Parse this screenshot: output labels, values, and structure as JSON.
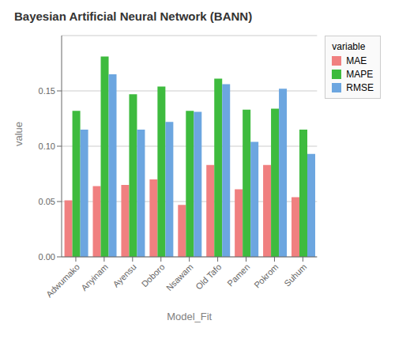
{
  "chart_data": {
    "type": "bar",
    "title": "Bayesian Artificial Neural Network (BANN)",
    "xlabel": "Model_Fit",
    "ylabel": "value",
    "categories": [
      "Adwumako",
      "Anyinam",
      "Ayensu",
      "Doboro",
      "Nsawam",
      "Old Tafo",
      "Pamen",
      "Pokrom",
      "Suhum"
    ],
    "series": [
      {
        "name": "MAE",
        "color": "#F08080",
        "values": [
          0.051,
          0.064,
          0.065,
          0.07,
          0.047,
          0.083,
          0.061,
          0.083,
          0.054
        ]
      },
      {
        "name": "MAPE",
        "color": "#3EBB3E",
        "values": [
          0.132,
          0.181,
          0.147,
          0.154,
          0.132,
          0.161,
          0.133,
          0.134,
          0.115
        ]
      },
      {
        "name": "RMSE",
        "color": "#6CA6E0",
        "values": [
          0.115,
          0.165,
          0.115,
          0.122,
          0.131,
          0.156,
          0.104,
          0.152,
          0.093
        ]
      }
    ],
    "ylim": [
      0,
      0.2
    ],
    "yticks": [
      {
        "value": 0,
        "label": "0.00"
      },
      {
        "value": 0.05,
        "label": "0.05"
      },
      {
        "value": 0.1,
        "label": "0.10"
      },
      {
        "value": 0.15,
        "label": "0.15"
      }
    ],
    "grid": true,
    "legend": "right",
    "legend_title": "variable"
  }
}
